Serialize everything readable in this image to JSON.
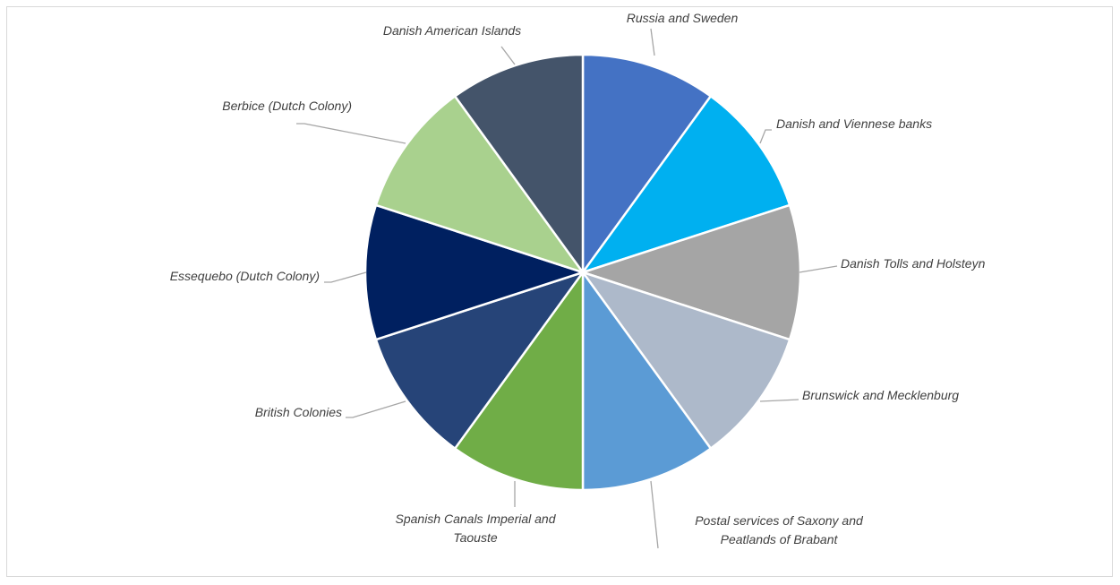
{
  "chart_data": {
    "type": "pie",
    "title": "",
    "start_angle_deg": 0,
    "direction": "clockwise",
    "slices": [
      {
        "label": "Russia and Sweden",
        "value": 1,
        "color": "#4472C4"
      },
      {
        "label": "Danish and Viennese banks",
        "value": 1,
        "color": "#00B0F0"
      },
      {
        "label": "Danish Tolls and Holsteyn",
        "value": 1,
        "color": "#A5A5A5"
      },
      {
        "label": "Brunswick and Mecklenburg",
        "value": 1,
        "color": "#ADB9CA"
      },
      {
        "label": "Postal services of Saxony and Peatlands of Brabant",
        "value": 1,
        "color": "#5B9BD5"
      },
      {
        "label": "Spanish Canals Imperial and Taouste",
        "value": 1,
        "color": "#70AD47"
      },
      {
        "label": "British Colonies",
        "value": 1,
        "color": "#264478"
      },
      {
        "label": "Essequebo (Dutch Colony)",
        "value": 1,
        "color": "#002060"
      },
      {
        "label": "Berbice (Dutch Colony)",
        "value": 1,
        "color": "#A9D18E"
      },
      {
        "label": "Danish American Islands",
        "value": 1,
        "color": "#44546A"
      }
    ],
    "legend": "none",
    "data_labels": "category names with leader lines"
  }
}
